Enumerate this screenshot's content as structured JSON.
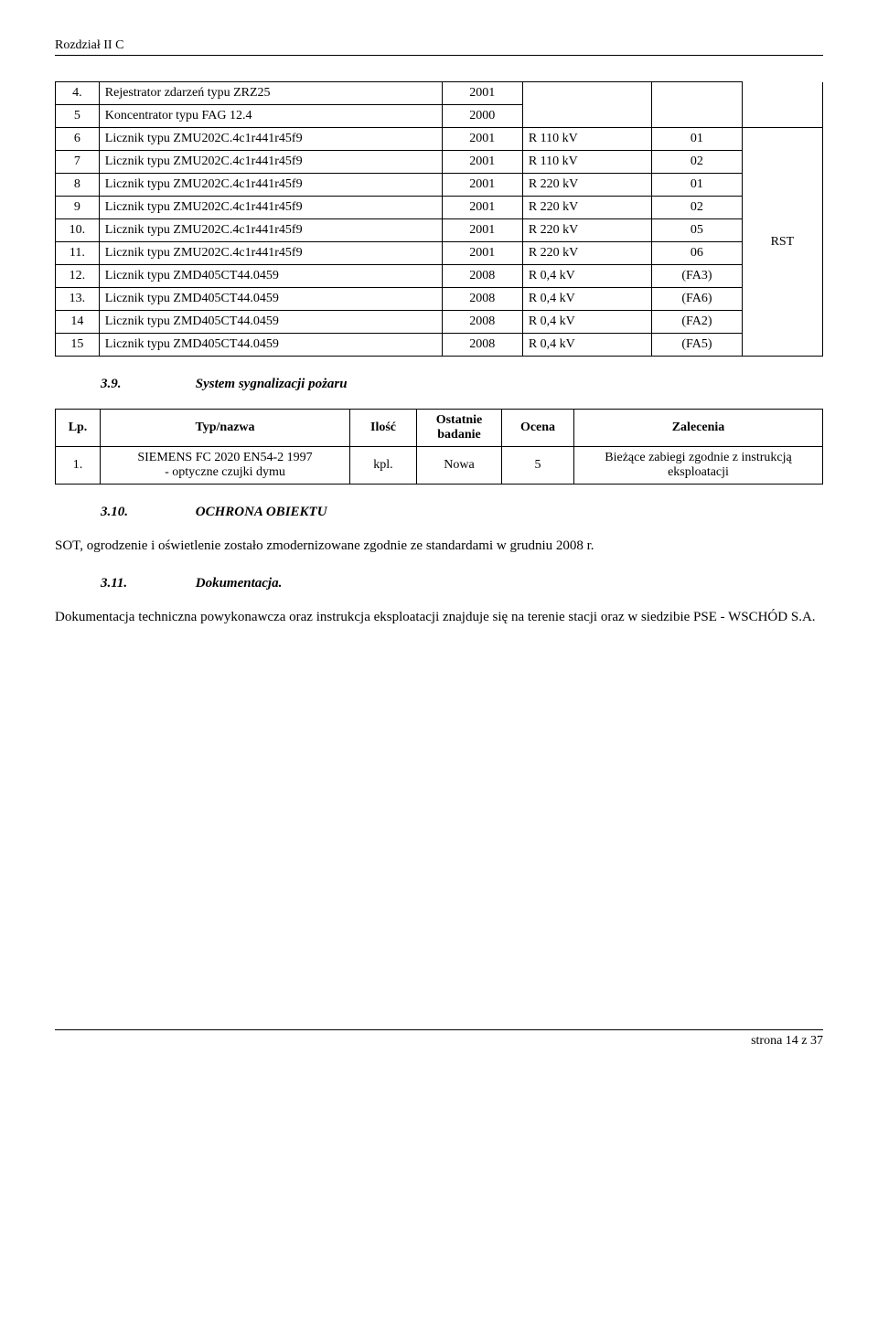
{
  "header": {
    "section_label": "Rozdział II C"
  },
  "table1": {
    "rows": [
      {
        "n": "4.",
        "name": "Rejestrator zdarzeń typu  ZRZ25",
        "year": "2001",
        "rating": "",
        "pole": ""
      },
      {
        "n": "5",
        "name": "Koncentrator  typu FAG 12.4",
        "year": "2000",
        "rating": "",
        "pole": ""
      },
      {
        "n": "6",
        "name": "Licznik typu ZMU202C.4c1r441r45f9",
        "year": "2001",
        "rating": "R 110 kV",
        "pole": "01"
      },
      {
        "n": "7",
        "name": "Licznik typu ZMU202C.4c1r441r45f9",
        "year": "2001",
        "rating": "R 110 kV",
        "pole": "02"
      },
      {
        "n": "8",
        "name": "Licznik typu ZMU202C.4c1r441r45f9",
        "year": "2001",
        "rating": "R 220 kV",
        "pole": "01"
      },
      {
        "n": "9",
        "name": "Licznik typu ZMU202C.4c1r441r45f9",
        "year": "2001",
        "rating": "R 220 kV",
        "pole": "02"
      },
      {
        "n": "10.",
        "name": "Licznik typu ZMU202C.4c1r441r45f9",
        "year": "2001",
        "rating": "R 220 kV",
        "pole": "05"
      },
      {
        "n": "11.",
        "name": "Licznik typu ZMU202C.4c1r441r45f9",
        "year": "2001",
        "rating": "R 220 kV",
        "pole": "06"
      },
      {
        "n": "12.",
        "name": "Licznik typu ZMD405CT44.0459",
        "year": "2008",
        "rating": "R 0,4 kV",
        "pole": "(FA3)"
      },
      {
        "n": "13.",
        "name": "Licznik typu ZMD405CT44.0459",
        "year": "2008",
        "rating": "R 0,4 kV",
        "pole": "(FA6)"
      },
      {
        "n": "14",
        "name": "Licznik typu ZMD405CT44.0459",
        "year": "2008",
        "rating": "R 0,4 kV",
        "pole": "(FA2)"
      },
      {
        "n": "15",
        "name": "Licznik typu ZMD405CT44.0459",
        "year": "2008",
        "rating": "R 0,4 kV",
        "pole": "(FA5)"
      }
    ],
    "rst_label": "RST"
  },
  "sec39": {
    "num": "3.9.",
    "title": "System sygnalizacji pożaru"
  },
  "table2": {
    "head": {
      "lp": "Lp.",
      "typ": "Typ/nazwa",
      "ilosc": "Ilość",
      "bad": "Ostatnie badanie",
      "ocena": "Ocena",
      "zal": "Zalecenia"
    },
    "row": {
      "lp": "1.",
      "name": "SIEMENS FC 2020 EN54-2 1997\n- optyczne czujki dymu",
      "ilosc": "kpl.",
      "bad": "Nowa",
      "ocena": "5",
      "zal": "Bieżące zabiegi zgodnie z instrukcją eksploatacji"
    }
  },
  "sec310": {
    "num": "3.10.",
    "title": "OCHRONA OBIEKTU",
    "body": "SOT, ogrodzenie i oświetlenie zostało zmodernizowane zgodnie ze standardami w grudniu 2008 r."
  },
  "sec311": {
    "num": "3.11.",
    "title": "Dokumentacja.",
    "body": "Dokumentacja techniczna powykonawcza oraz instrukcja eksploatacji znajduje się na terenie stacji oraz w siedzibie PSE - WSCHÓD S.A."
  },
  "footer": {
    "text": "strona 14 z 37"
  }
}
